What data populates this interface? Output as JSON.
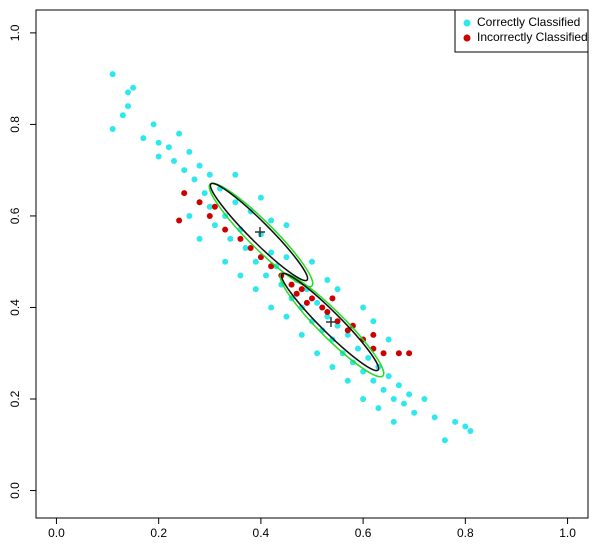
{
  "chart_data": {
    "type": "scatter",
    "xlim": [
      -0.04,
      1.04
    ],
    "ylim": [
      -0.06,
      1.05
    ],
    "xticks": [
      {
        "value": 0,
        "label": "0.0"
      },
      0.2,
      0.4,
      0.6,
      0.8,
      {
        "value": 1,
        "label": "1.0"
      }
    ],
    "yticks": [
      {
        "value": 0,
        "label": "0.0"
      },
      0.2,
      0.4,
      0.6,
      0.8,
      {
        "value": 1,
        "label": "1.0"
      }
    ],
    "legend": "top-right",
    "series": [
      {
        "name": "Correctly Classified",
        "color": "#2ee8ee",
        "x": [
          0.11,
          0.11,
          0.13,
          0.14,
          0.15,
          0.14,
          0.17,
          0.19,
          0.2,
          0.2,
          0.22,
          0.23,
          0.24,
          0.25,
          0.26,
          0.27,
          0.28,
          0.29,
          0.3,
          0.3,
          0.31,
          0.32,
          0.33,
          0.34,
          0.35,
          0.36,
          0.37,
          0.38,
          0.39,
          0.4,
          0.41,
          0.42,
          0.43,
          0.44,
          0.45,
          0.46,
          0.47,
          0.48,
          0.49,
          0.5,
          0.51,
          0.52,
          0.53,
          0.54,
          0.55,
          0.56,
          0.57,
          0.58,
          0.59,
          0.6,
          0.61,
          0.62,
          0.63,
          0.64,
          0.65,
          0.66,
          0.67,
          0.68,
          0.69,
          0.7,
          0.72,
          0.74,
          0.76,
          0.78,
          0.8,
          0.81,
          0.26,
          0.28,
          0.33,
          0.36,
          0.39,
          0.42,
          0.45,
          0.48,
          0.51,
          0.54,
          0.57,
          0.6,
          0.63,
          0.66,
          0.35,
          0.4,
          0.45,
          0.5,
          0.55,
          0.6,
          0.65,
          0.42,
          0.53,
          0.62
        ],
        "values": [
          0.91,
          0.79,
          0.82,
          0.87,
          0.88,
          0.84,
          0.77,
          0.8,
          0.76,
          0.73,
          0.75,
          0.72,
          0.78,
          0.7,
          0.74,
          0.68,
          0.71,
          0.65,
          0.69,
          0.62,
          0.58,
          0.66,
          0.6,
          0.55,
          0.63,
          0.57,
          0.53,
          0.61,
          0.5,
          0.56,
          0.47,
          0.52,
          0.49,
          0.45,
          0.51,
          0.42,
          0.46,
          0.4,
          0.44,
          0.37,
          0.41,
          0.35,
          0.38,
          0.33,
          0.36,
          0.3,
          0.34,
          0.28,
          0.31,
          0.26,
          0.29,
          0.24,
          0.27,
          0.22,
          0.25,
          0.2,
          0.23,
          0.19,
          0.21,
          0.17,
          0.2,
          0.16,
          0.11,
          0.15,
          0.14,
          0.13,
          0.6,
          0.55,
          0.5,
          0.47,
          0.44,
          0.4,
          0.38,
          0.34,
          0.3,
          0.27,
          0.24,
          0.2,
          0.18,
          0.15,
          0.69,
          0.64,
          0.58,
          0.5,
          0.44,
          0.4,
          0.33,
          0.59,
          0.46,
          0.37
        ]
      },
      {
        "name": "Incorrectly Classified",
        "color": "#cc0000",
        "x": [
          0.24,
          0.25,
          0.28,
          0.3,
          0.31,
          0.33,
          0.36,
          0.38,
          0.4,
          0.42,
          0.44,
          0.46,
          0.47,
          0.48,
          0.49,
          0.5,
          0.52,
          0.53,
          0.55,
          0.57,
          0.58,
          0.6,
          0.62,
          0.64,
          0.67,
          0.69,
          0.62,
          0.54
        ],
        "values": [
          0.59,
          0.65,
          0.63,
          0.6,
          0.62,
          0.57,
          0.55,
          0.53,
          0.51,
          0.49,
          0.47,
          0.45,
          0.43,
          0.44,
          0.41,
          0.42,
          0.4,
          0.39,
          0.37,
          0.35,
          0.36,
          0.33,
          0.31,
          0.3,
          0.3,
          0.3,
          0.34,
          0.42
        ]
      }
    ]
  }
}
